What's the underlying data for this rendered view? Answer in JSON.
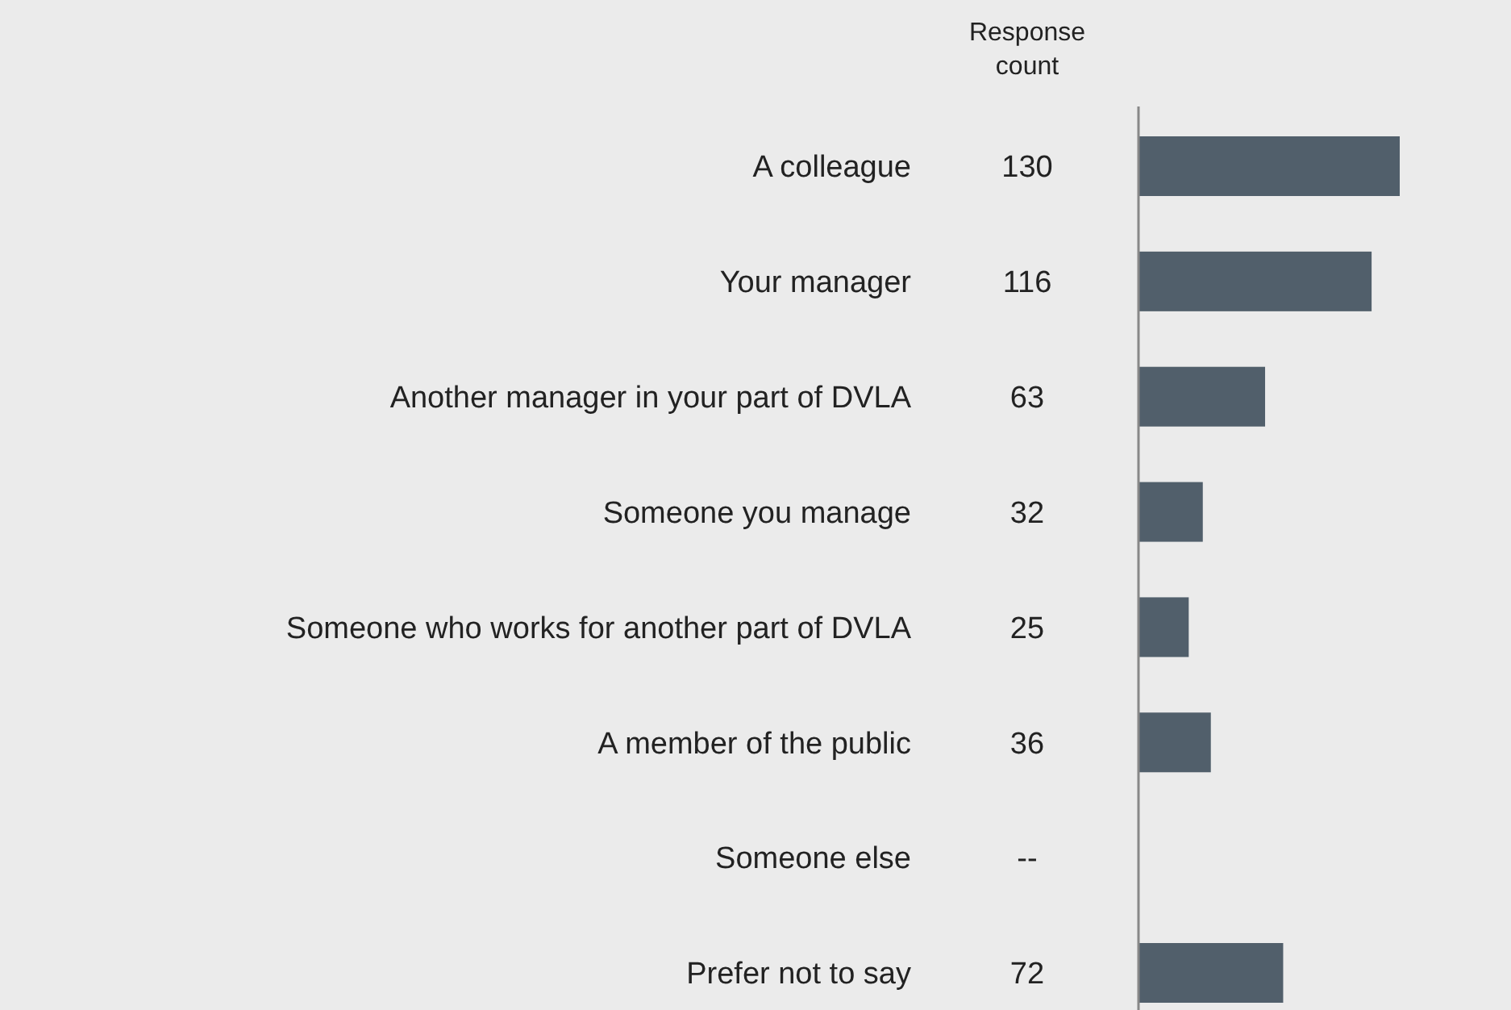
{
  "chart_data": {
    "type": "bar",
    "orientation": "horizontal",
    "xlabel": "Response count",
    "categories": [
      "A colleague",
      "Your manager",
      "Another manager in your part of DVLA",
      "Someone you manage",
      "Someone who works for another part of DVLA",
      "A member of the public",
      "Someone else",
      "Prefer not to say"
    ],
    "values": [
      130,
      116,
      63,
      32,
      25,
      36,
      null,
      72
    ],
    "value_labels": [
      "130",
      "116",
      "63",
      "32",
      "25",
      "36",
      "--",
      "72"
    ],
    "color": "#515f6b"
  }
}
